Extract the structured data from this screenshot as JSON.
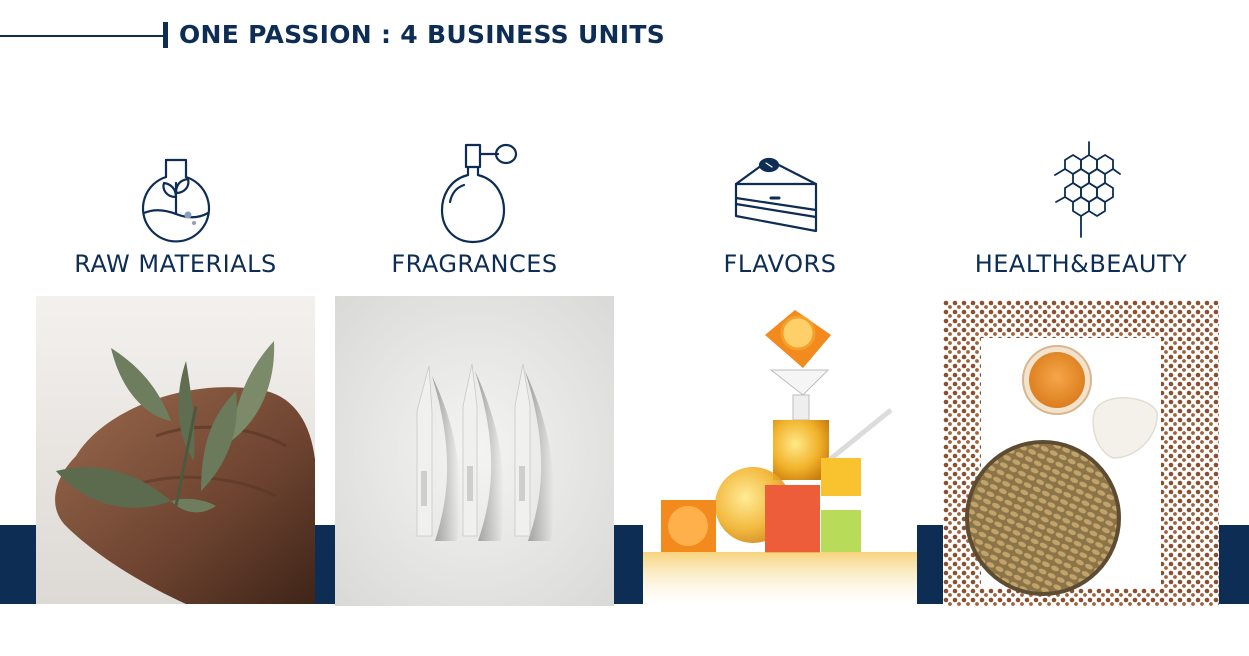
{
  "header": {
    "title": "ONE PASSION : 4 BUSINESS UNITS"
  },
  "colors": {
    "brand_navy": "#0d2d55"
  },
  "units": [
    {
      "label": "RAW MATERIALS",
      "icon": "flask-plant-icon",
      "image": "sage-leaves-on-hand-photo"
    },
    {
      "label": "FRAGRANCES",
      "icon": "perfume-bottle-icon",
      "image": "perfume-blotter-strips-photo"
    },
    {
      "label": "FLAVORS",
      "icon": "cake-slice-icon",
      "image": "citrus-oil-flasks-photo"
    },
    {
      "label": "HEALTH&BEAUTY",
      "icon": "molecule-icon",
      "image": "grains-and-cream-photo"
    }
  ]
}
